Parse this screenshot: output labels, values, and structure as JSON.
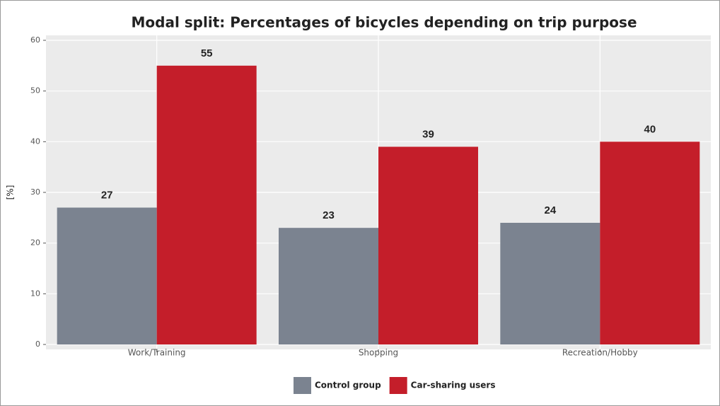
{
  "chart_data": {
    "type": "bar",
    "title": "Modal split: Percentages of bicycles depending on trip purpose",
    "ylabel": "[%]",
    "categories": [
      "Work/Training",
      "Shopping",
      "Recreation/Hobby"
    ],
    "series": [
      {
        "name": "Control group",
        "color": "#7b8390",
        "values": [
          27,
          23,
          24
        ]
      },
      {
        "name": "Car-sharing users",
        "color": "#c41e2a",
        "values": [
          55,
          39,
          40
        ]
      }
    ],
    "ylim": [
      0,
      60
    ],
    "yticks": [
      0,
      10,
      20,
      30,
      40,
      50,
      60
    ],
    "grid": true,
    "legend": "bottom"
  }
}
